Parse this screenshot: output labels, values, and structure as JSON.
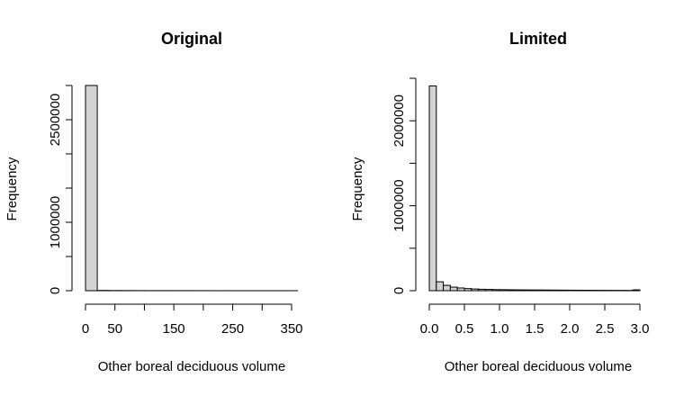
{
  "chart_data": [
    {
      "type": "histogram",
      "title": "Original",
      "x_label": "Other boreal deciduous volume",
      "y_label": "Frequency",
      "bins": [
        0,
        20,
        40,
        60,
        80,
        100,
        120,
        140,
        160,
        180,
        200,
        220,
        240,
        260,
        280,
        300,
        320,
        340,
        360
      ],
      "values": [
        3000000,
        4000,
        2500,
        2000,
        1500,
        1200,
        1000,
        900,
        800,
        700,
        600,
        500,
        450,
        400,
        350,
        300,
        250,
        200
      ],
      "color": "#d3d3d3",
      "xlim": [
        0,
        350
      ],
      "xticks": [
        0,
        50,
        150,
        250,
        350
      ],
      "xminor_ticks": [
        100,
        200,
        300
      ],
      "ylim": [
        0,
        3000000
      ],
      "yticks": [
        0,
        1000000,
        2500000
      ],
      "yminor_ticks": [
        500000,
        1500000,
        2000000,
        3000000
      ]
    },
    {
      "type": "histogram",
      "title": "Limited",
      "x_label": "Other boreal deciduous volume",
      "y_label": "Frequency",
      "bins": [
        0,
        0.1,
        0.2,
        0.3,
        0.4,
        0.5,
        0.6,
        0.7,
        0.8,
        0.9,
        1.0,
        1.1,
        1.2,
        1.3,
        1.4,
        1.5,
        1.6,
        1.7,
        1.8,
        1.9,
        2.0,
        2.1,
        2.2,
        2.3,
        2.4,
        2.5,
        2.6,
        2.7,
        2.8,
        2.9,
        3.0
      ],
      "values": [
        2410000,
        105000,
        63000,
        42000,
        32000,
        25000,
        20000,
        17000,
        15000,
        13000,
        12000,
        11000,
        10000,
        9500,
        9000,
        8500,
        8000,
        7500,
        7000,
        6500,
        6000,
        5500,
        5000,
        4700,
        4400,
        4100,
        3800,
        3500,
        3200,
        10000
      ],
      "color": "#d3d3d3",
      "xlim": [
        0,
        3.0
      ],
      "xticks": [
        {
          "value": 0,
          "label": "0.0"
        },
        0.5,
        {
          "value": 1,
          "label": "1.0"
        },
        1.5,
        {
          "value": 2,
          "label": "2.0"
        },
        2.5,
        {
          "value": 3,
          "label": "3.0"
        }
      ],
      "xminor_ticks": [],
      "ylim": [
        0,
        2500000
      ],
      "yticks": [
        0,
        1000000,
        2000000
      ],
      "yminor_ticks": [
        500000,
        1500000,
        2500000
      ]
    }
  ]
}
